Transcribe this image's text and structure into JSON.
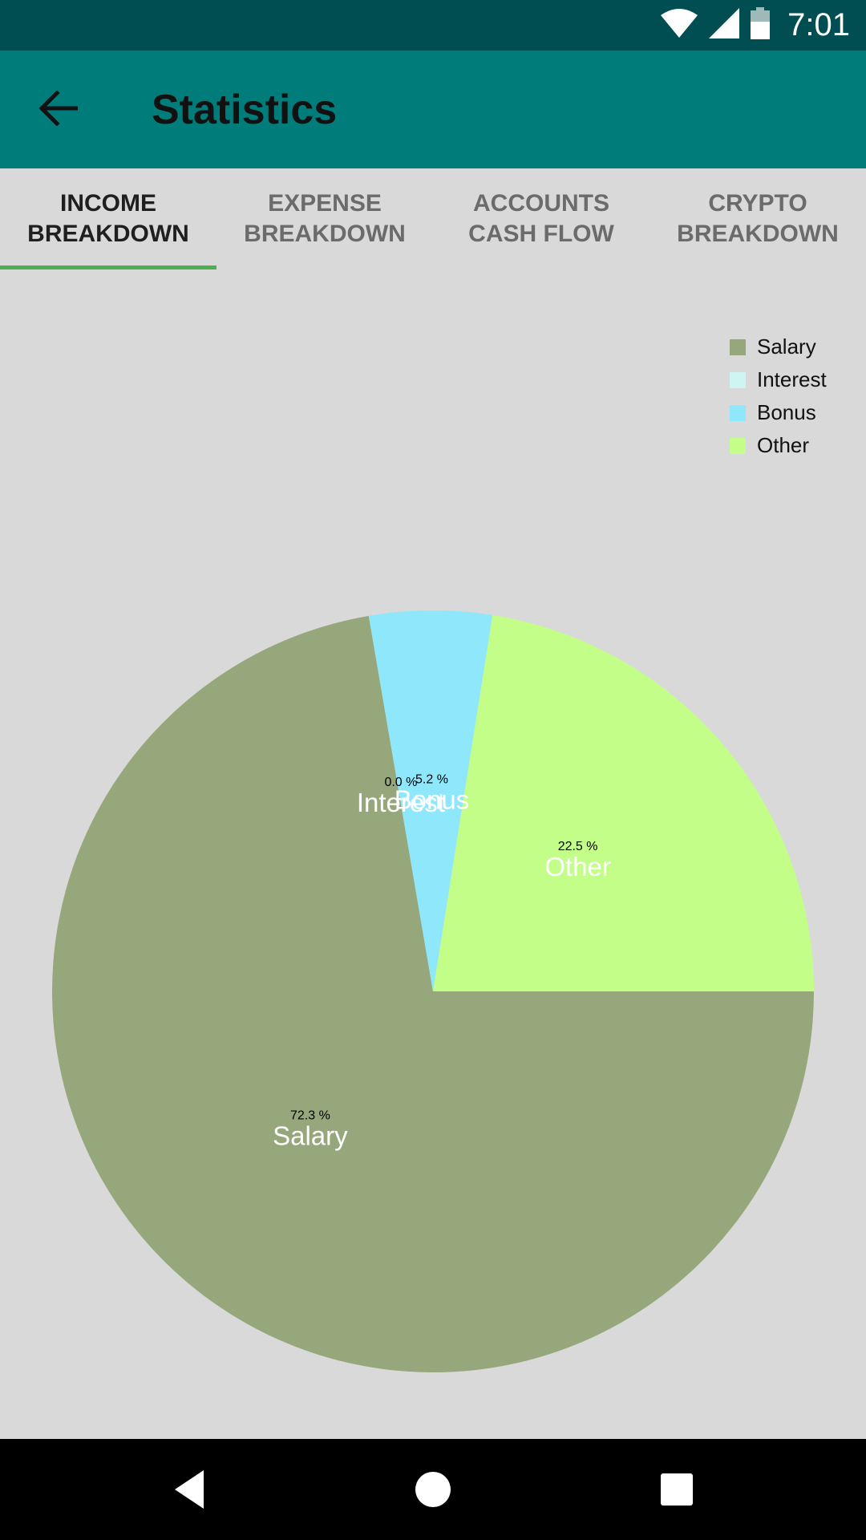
{
  "status_bar": {
    "time": "7:01",
    "icons": [
      "wifi-icon",
      "cell-signal-icon",
      "battery-icon"
    ]
  },
  "toolbar": {
    "back_icon": "arrow-left-icon",
    "title": "Statistics"
  },
  "tabs": [
    {
      "label": "INCOME\nBREAKDOWN",
      "active": true
    },
    {
      "label": "EXPENSE\nBREAKDOWN",
      "active": false
    },
    {
      "label": "ACCOUNTS\nCASH FLOW",
      "active": false
    },
    {
      "label": "CRYPTO\nBREAKDOWN",
      "active": false
    }
  ],
  "chart_data": {
    "type": "pie",
    "categories": [
      "Salary",
      "Interest",
      "Bonus",
      "Other"
    ],
    "values": [
      72.3,
      0.0,
      5.2,
      22.5
    ],
    "value_labels": [
      "72.3 %",
      "0.0 %",
      "5.2 %",
      "22.5 %"
    ],
    "colors": [
      "#97a77c",
      "#cff5f2",
      "#8fe7fb",
      "#c2fe88"
    ],
    "legend": [
      "Salary",
      "Interest",
      "Bonus",
      "Other"
    ],
    "legend_position": "top-right"
  },
  "nav_bar": {
    "icons": [
      "back-triangle-icon",
      "home-circle-icon",
      "recents-square-icon"
    ]
  }
}
